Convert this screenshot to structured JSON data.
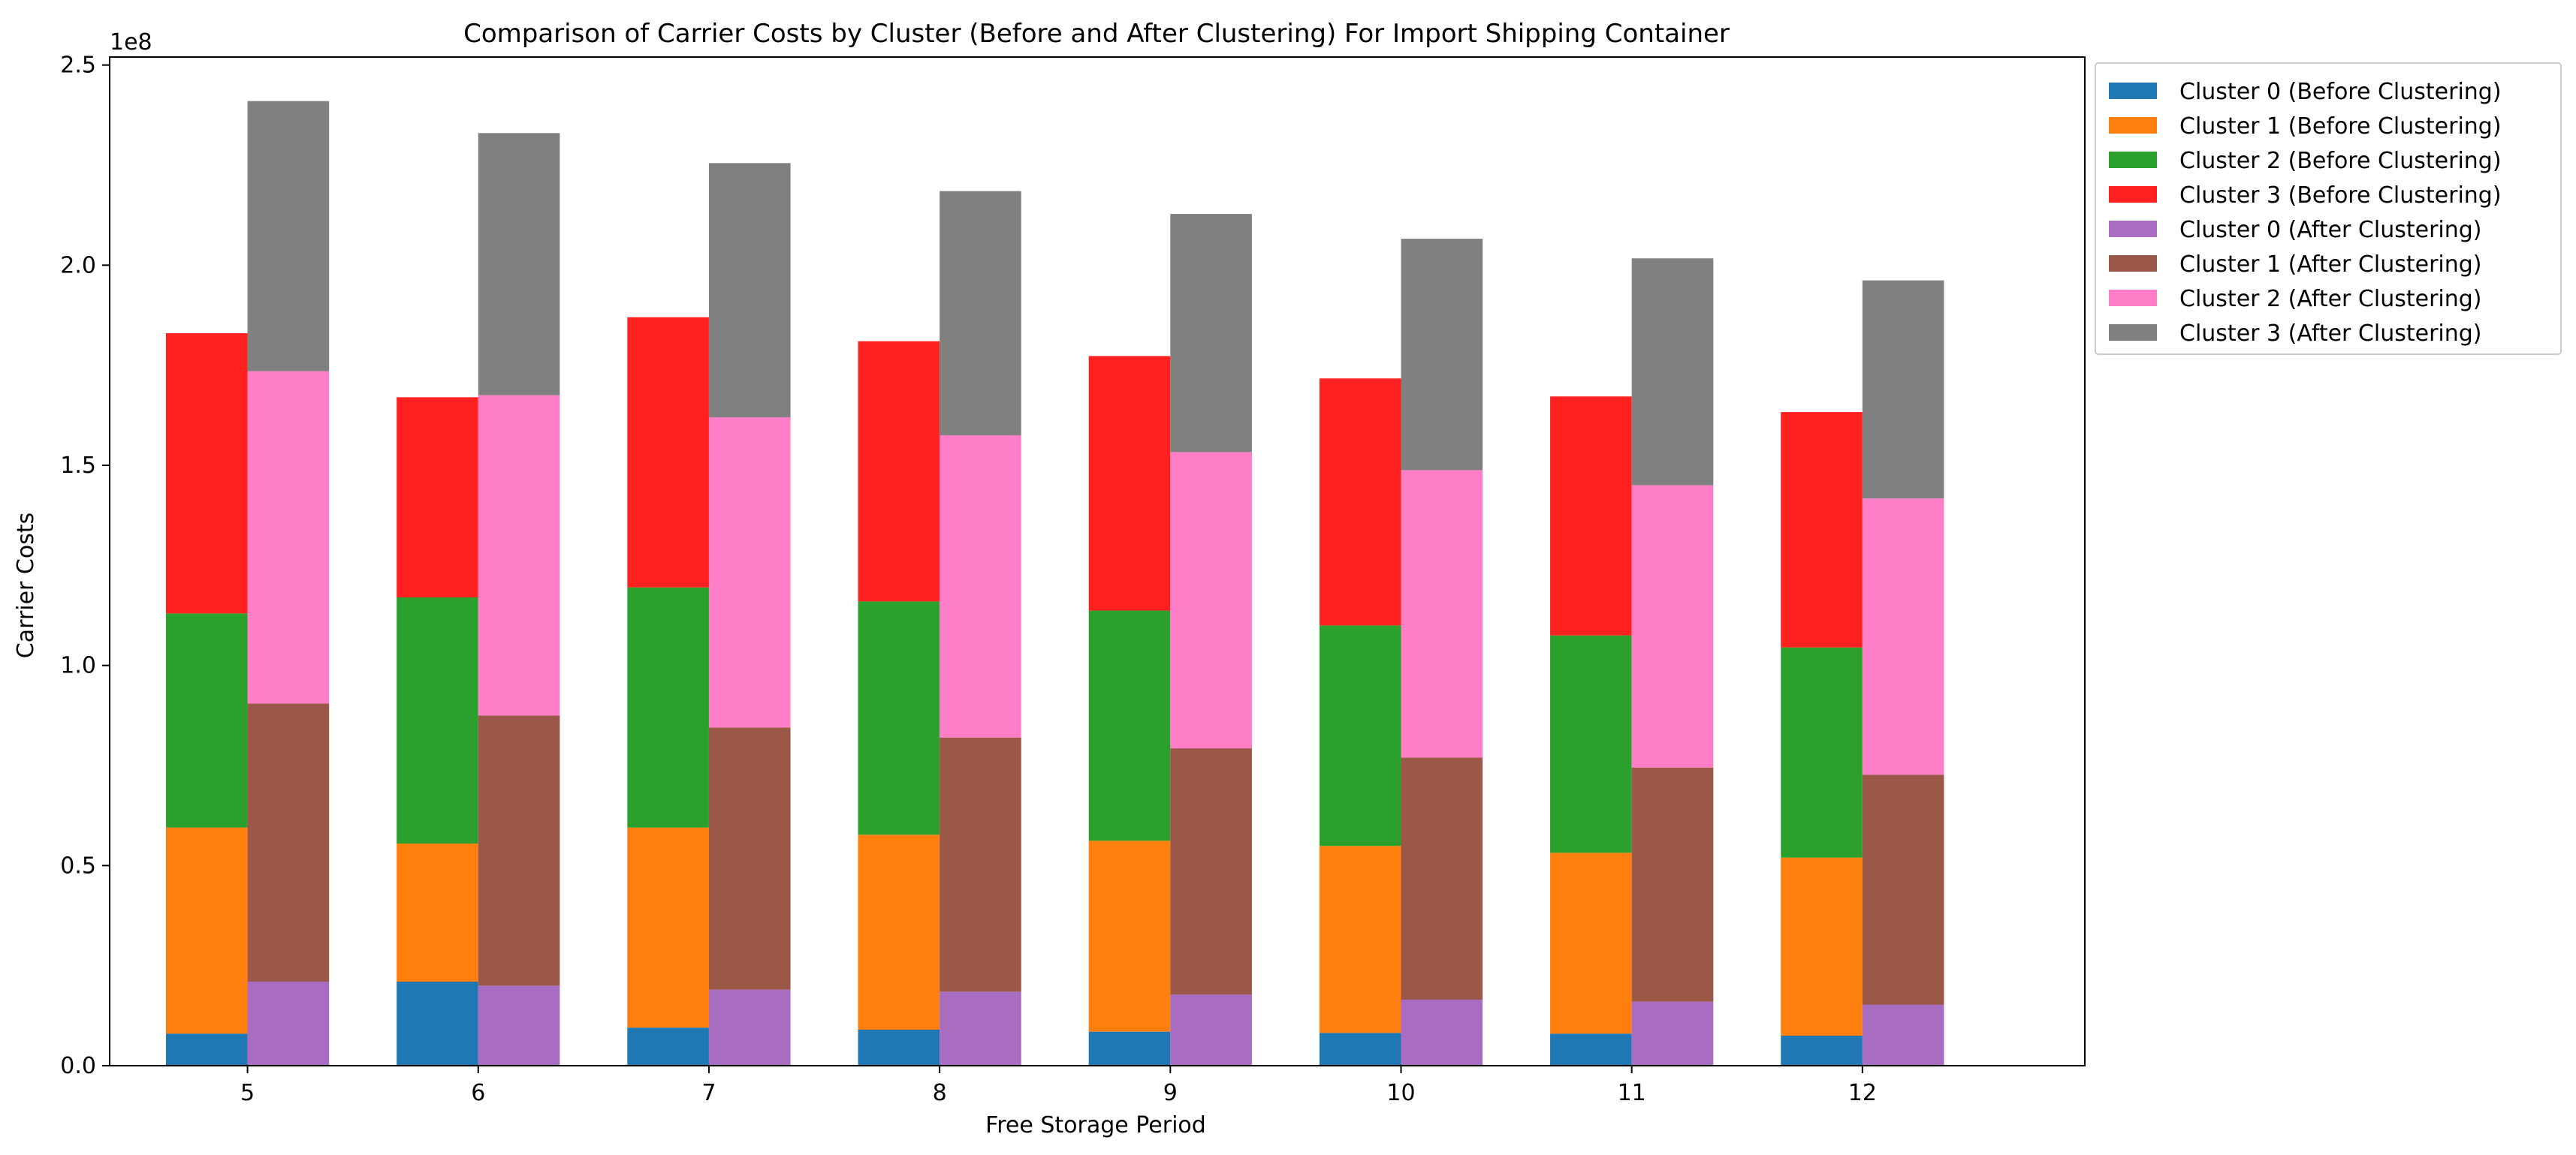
{
  "chart_data": {
    "type": "bar",
    "stacked": true,
    "grouped": true,
    "title": "Comparison of Carrier Costs by Cluster (Before and After Clustering) For Import Shipping Container",
    "xlabel": "Free Storage Period",
    "ylabel": "Carrier Costs",
    "y_multiplier_label": "1e8",
    "ylim": [
      0,
      2.52
    ],
    "yticks": [
      "0.0",
      "0.5",
      "1.0",
      "1.5",
      "2.0",
      "2.5"
    ],
    "categories": [
      "5",
      "6",
      "7",
      "8",
      "9",
      "10",
      "11",
      "12"
    ],
    "legend_position": "outside-top-right",
    "groups": [
      {
        "name": "Before Clustering",
        "series": [
          {
            "name": "Cluster 0 (Before Clustering)",
            "color": "#1f77b4",
            "values": [
              0.08,
              0.21,
              0.095,
              0.09,
              0.085,
              0.082,
              0.08,
              0.075
            ]
          },
          {
            "name": "Cluster 1 (Before Clustering)",
            "color": "#ff7f0e",
            "values": [
              0.515,
              0.345,
              0.5,
              0.487,
              0.477,
              0.467,
              0.452,
              0.445
            ]
          },
          {
            "name": "Cluster 2 (Before Clustering)",
            "color": "#2ca02c",
            "values": [
              0.535,
              0.615,
              0.6,
              0.583,
              0.575,
              0.551,
              0.543,
              0.525
            ]
          },
          {
            "name": "Cluster 3 (Before Clustering)",
            "color": "#ff2020",
            "values": [
              0.7,
              0.5,
              0.675,
              0.65,
              0.636,
              0.617,
              0.597,
              0.588
            ]
          }
        ]
      },
      {
        "name": "After Clustering",
        "series": [
          {
            "name": "Cluster 0 (After Clustering)",
            "color": "#a86cc1",
            "values": [
              0.21,
              0.2,
              0.19,
              0.185,
              0.178,
              0.165,
              0.16,
              0.152
            ]
          },
          {
            "name": "Cluster 1 (After Clustering)",
            "color": "#9b5849",
            "values": [
              0.695,
              0.675,
              0.655,
              0.635,
              0.615,
              0.605,
              0.585,
              0.575
            ]
          },
          {
            "name": "Cluster 2 (After Clustering)",
            "color": "#ff7ec7",
            "values": [
              0.83,
              0.8,
              0.775,
              0.755,
              0.74,
              0.718,
              0.705,
              0.69
            ]
          },
          {
            "name": "Cluster 3 (After Clustering)",
            "color": "#808080",
            "values": [
              0.675,
              0.655,
              0.635,
              0.61,
              0.595,
              0.578,
              0.567,
              0.545
            ]
          }
        ]
      }
    ]
  }
}
